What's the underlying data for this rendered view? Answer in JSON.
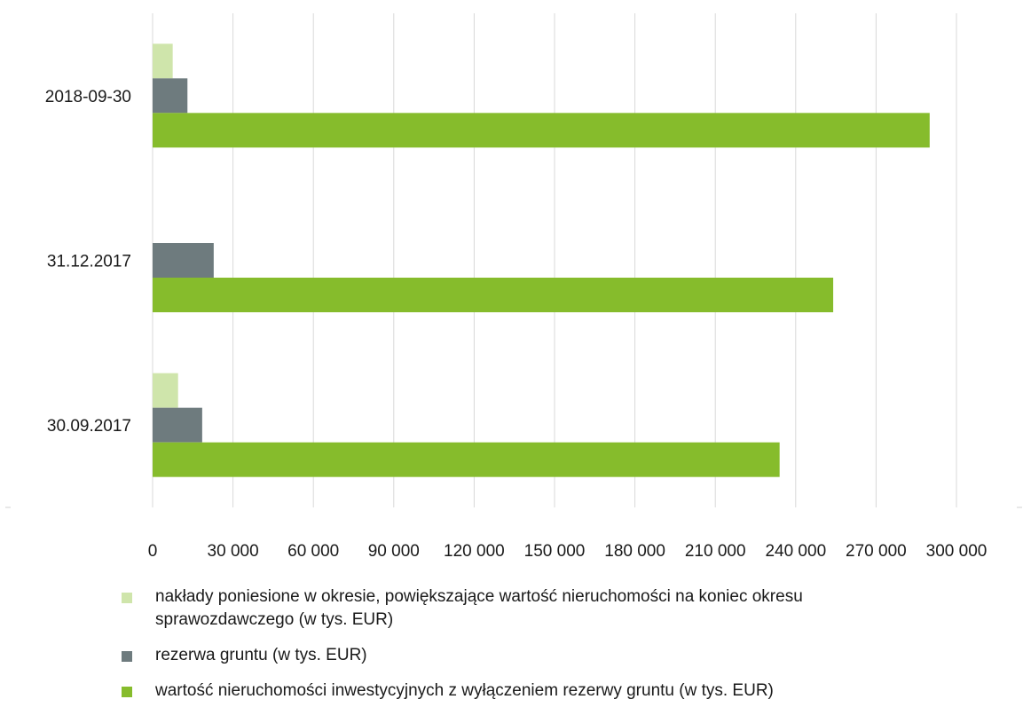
{
  "chart_data": {
    "type": "bar",
    "orientation": "horizontal",
    "categories": [
      "2018-09-30",
      "31.12.2017",
      "30.09.2017"
    ],
    "series": [
      {
        "name": "nakłady poniesione w okresie, powiększające wartość nieruchomości na koniec okresu sprawozdawczego (w tys. EUR)",
        "color": "#cfe5ab",
        "values": [
          7500,
          0,
          9500
        ]
      },
      {
        "name": "rezerwa gruntu (w tys. EUR)",
        "color": "#6e7b7e",
        "values": [
          13000,
          22800,
          18500
        ]
      },
      {
        "name": "wartość nieruchomości inwestycyjnych z wyłączeniem rezerwy gruntu (w tys. EUR)",
        "color": "#86bc2c",
        "values": [
          290000,
          254000,
          234000
        ]
      }
    ],
    "xlim": [
      0,
      300000
    ],
    "xticks": [
      "0",
      "30 000",
      "60 000",
      "90 000",
      "120 000",
      "150 000",
      "180 000",
      "210 000",
      "240 000",
      "270 000",
      "300 000"
    ],
    "grid": "vertical",
    "legend_position": "bottom"
  }
}
